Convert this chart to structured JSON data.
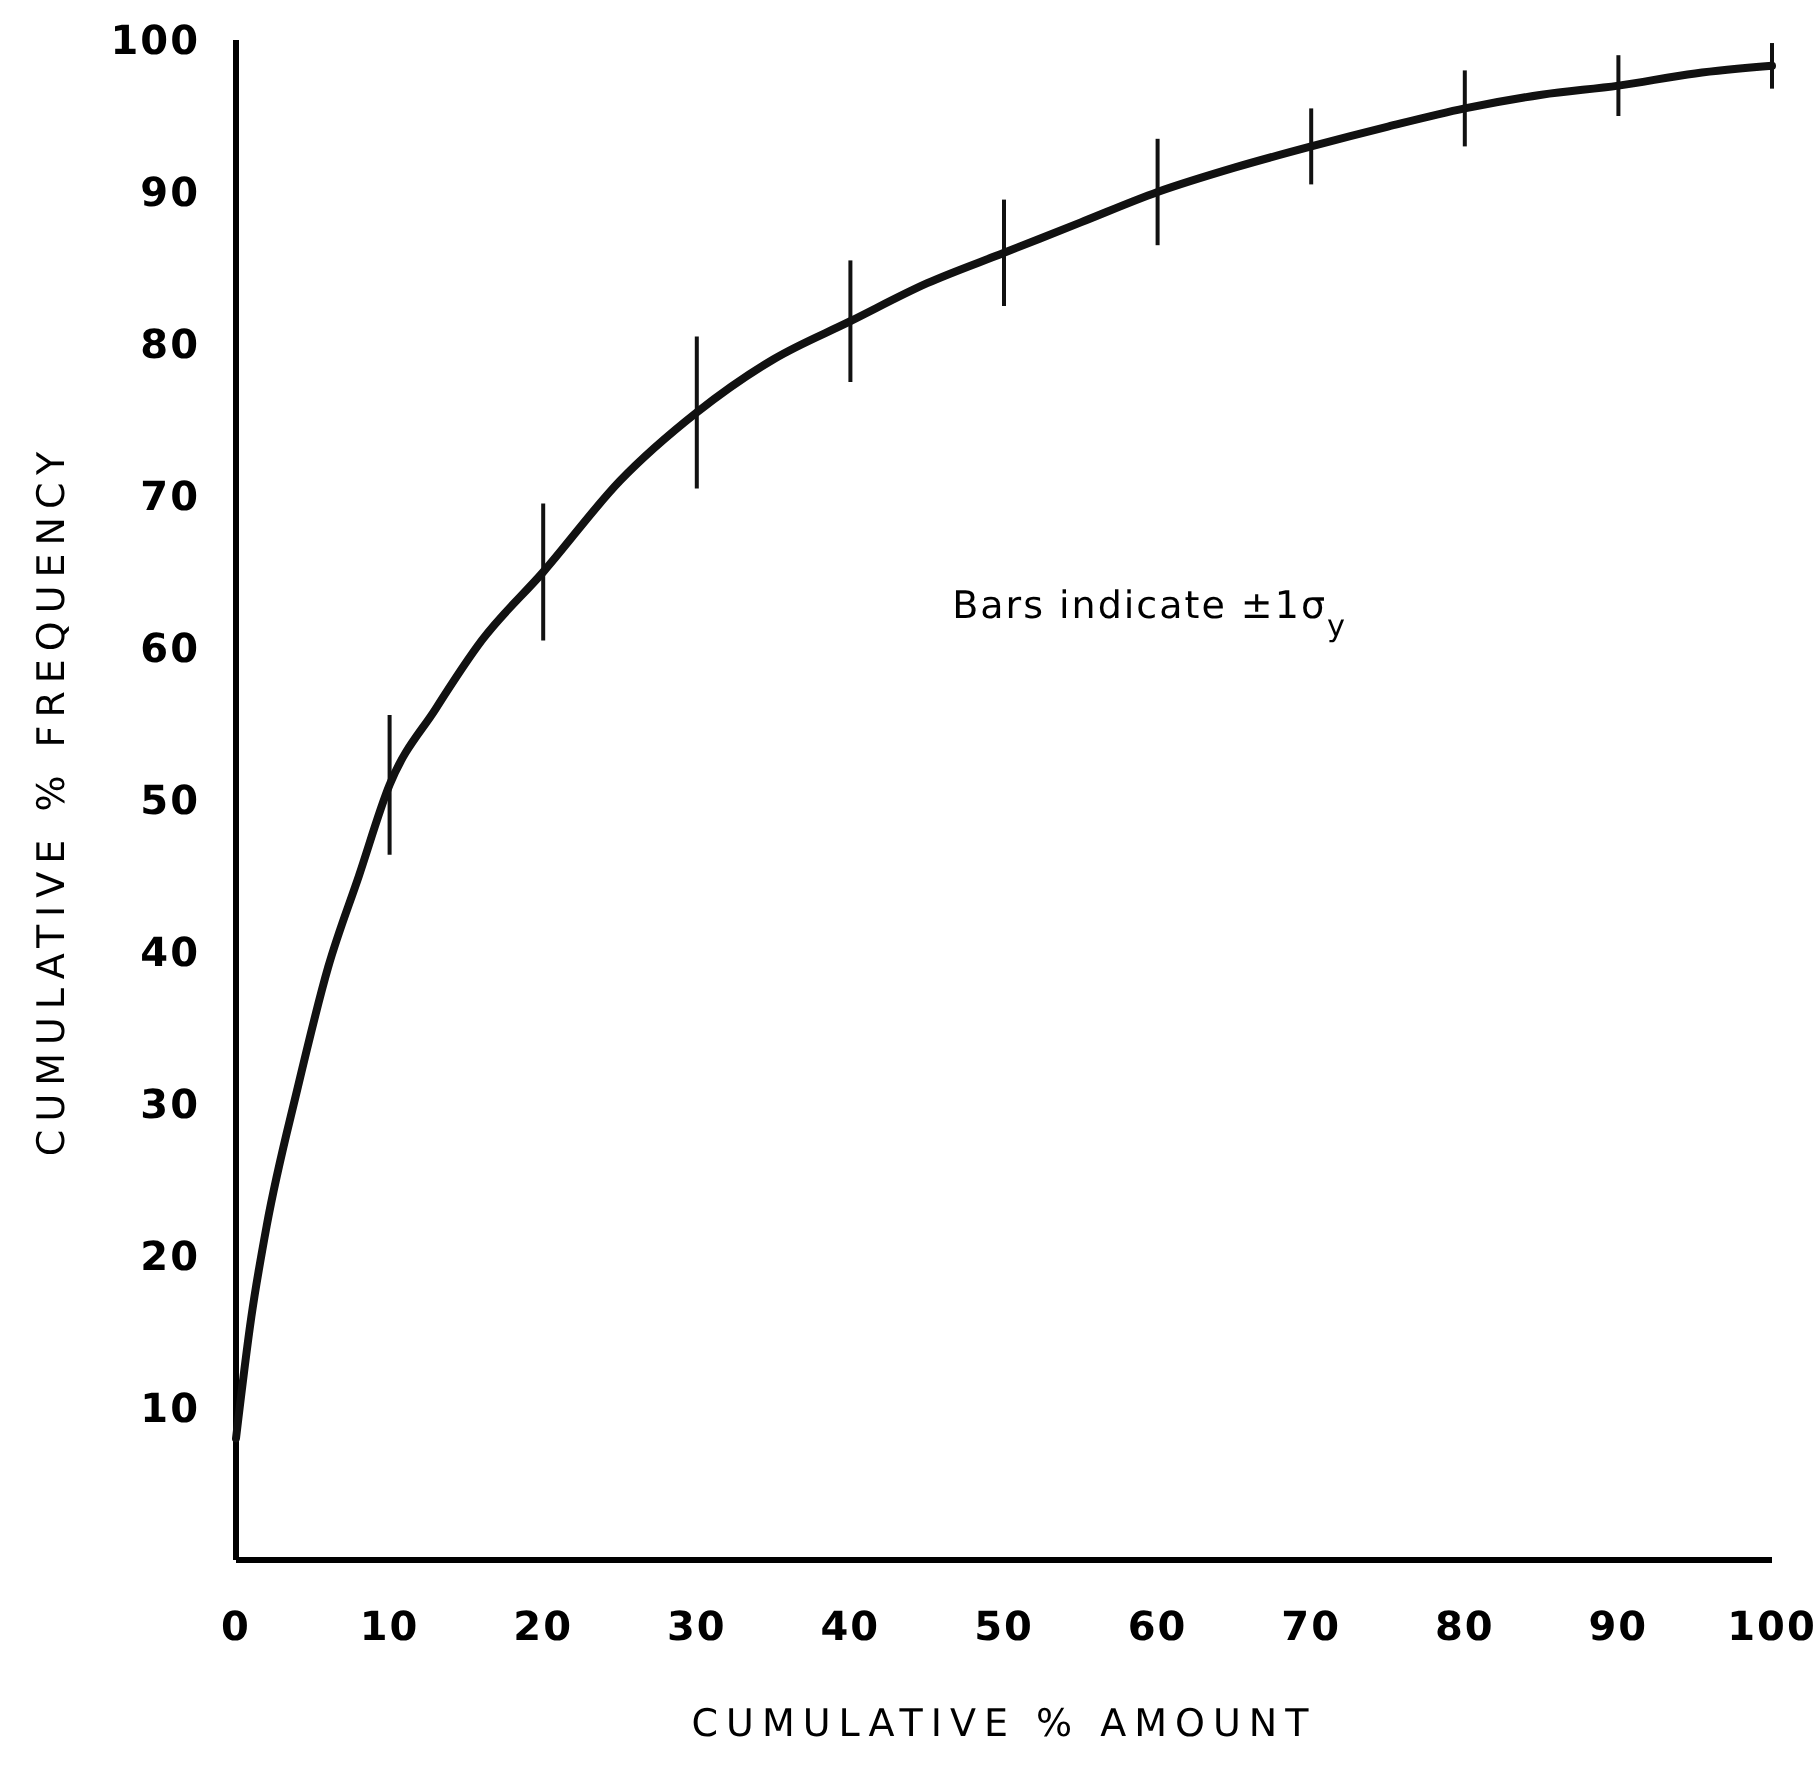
{
  "chart_data": {
    "type": "line",
    "xlabel": "CUMULATIVE % AMOUNT",
    "ylabel": "CUMULATIVE % FREQUENCY",
    "annotations": [
      "Bars indicate ±1σ$_{y}$"
    ],
    "xlim": [
      0,
      100
    ],
    "ylim": [
      0,
      100
    ],
    "xticks": [
      0,
      10,
      20,
      30,
      40,
      50,
      60,
      70,
      80,
      90,
      100
    ],
    "yticks": [
      10,
      20,
      30,
      40,
      50,
      60,
      70,
      80,
      90,
      100
    ],
    "marker": "none",
    "line_style": "solid",
    "series": [
      {
        "color": "#111111",
        "x": [
          0,
          1,
          2,
          4,
          6,
          8,
          10,
          13,
          16,
          20,
          25,
          30,
          35,
          40,
          45,
          50,
          55,
          60,
          65,
          70,
          75,
          80,
          85,
          90,
          95,
          100
        ],
        "values": [
          8,
          16,
          22,
          31,
          39,
          45,
          51,
          56,
          60.5,
          65,
          71,
          75.5,
          79,
          81.5,
          84,
          86,
          88,
          90,
          91.6,
          93,
          94.3,
          95.5,
          96.4,
          97,
          97.8,
          98.3
        ],
        "errors": [
          null,
          null,
          null,
          null,
          null,
          null,
          4.6,
          null,
          null,
          4.5,
          null,
          5,
          null,
          4,
          null,
          3.5,
          null,
          3.5,
          null,
          2.5,
          null,
          2.5,
          null,
          2,
          null,
          1.5
        ]
      }
    ]
  }
}
